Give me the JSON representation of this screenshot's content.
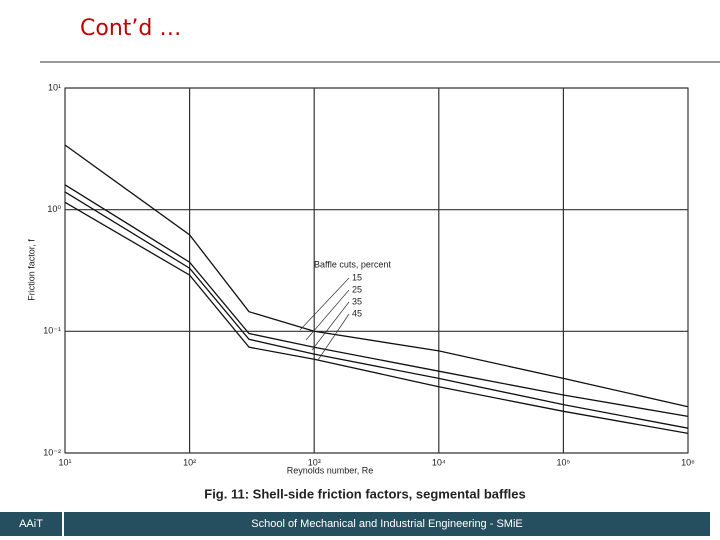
{
  "slide": {
    "title": "Cont’d …",
    "footer_left": "AAiT",
    "footer_center": "School of Mechanical and Industrial Engineering - SMiE"
  },
  "chart_data": {
    "type": "line",
    "title": "Fig. 11: Shell-side friction factors, segmental baffles",
    "xlabel": "Reynolds number, Re",
    "ylabel": "Friction factor, f",
    "legend_title": "Baffle cuts, percent",
    "xscale": "log",
    "yscale": "log",
    "grid": true,
    "x": [
      10,
      100,
      300,
      1000,
      10000,
      100000,
      1000000
    ],
    "series": [
      {
        "name": "15",
        "color": "#111111",
        "values": [
          3.4,
          0.62,
          0.145,
          0.1,
          0.069,
          0.041,
          0.024
        ]
      },
      {
        "name": "25",
        "color": "#111111",
        "values": [
          1.6,
          0.37,
          0.096,
          0.074,
          0.047,
          0.03,
          0.02
        ]
      },
      {
        "name": "35",
        "color": "#111111",
        "values": [
          1.4,
          0.33,
          0.086,
          0.065,
          0.041,
          0.025,
          0.016
        ]
      },
      {
        "name": "45",
        "color": "#111111",
        "values": [
          1.15,
          0.29,
          0.074,
          0.059,
          0.035,
          0.022,
          0.0145
        ]
      }
    ],
    "xlim": [
      10,
      1000000
    ],
    "xticks": [
      {
        "value": 10,
        "label": "10¹"
      },
      {
        "value": 100,
        "label": "10²"
      },
      {
        "value": 1000,
        "label": "10³"
      },
      {
        "value": 10000,
        "label": "10⁴"
      },
      {
        "value": 100000,
        "label": "10⁵"
      },
      {
        "value": 1000000,
        "label": "10⁶"
      }
    ],
    "ylim": [
      0.01,
      10
    ],
    "yticks": [
      {
        "value": 0.01,
        "label": "10⁻²"
      },
      {
        "value": 0.1,
        "label": "10⁻¹"
      },
      {
        "value": 1,
        "label": "10⁰"
      },
      {
        "value": 10,
        "label": "10¹"
      }
    ]
  }
}
